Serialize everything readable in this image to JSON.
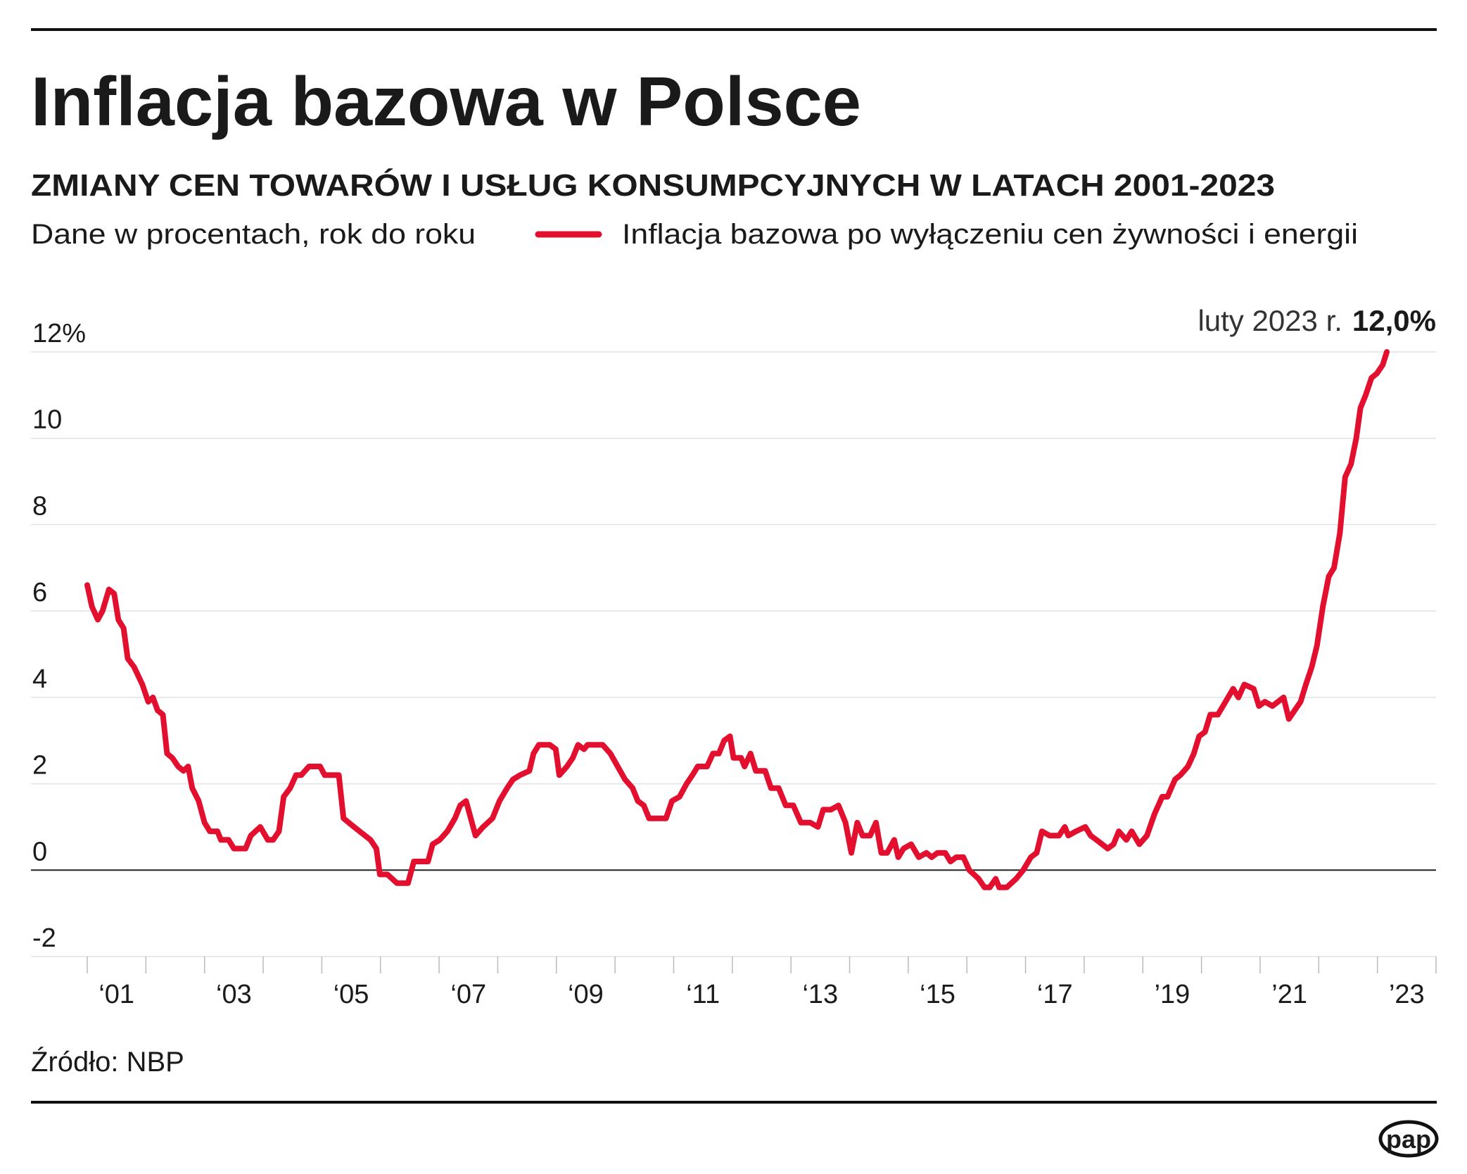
{
  "chart_data": {
    "type": "line",
    "title": "Inflacja bazowa w Polsce",
    "subtitle": "ZMIANY CEN TOWARÓW I USŁUG KONSUMPCYJNYCH W LATACH 2001-2023",
    "units_note": "Dane w procentach, rok do roku",
    "source": "Źródło: NBP",
    "logo": "pap",
    "end_label": {
      "text": "luty 2023 r.",
      "value": 12.0,
      "label": "12,0%"
    },
    "xlim": [
      2001,
      2024
    ],
    "xminorticks": [
      2001,
      2002,
      2003,
      2004,
      2005,
      2006,
      2007,
      2008,
      2009,
      2010,
      2011,
      2012,
      2013,
      2014,
      2015,
      2016,
      2017,
      2018,
      2019,
      2020,
      2021,
      2022,
      2023,
      2024
    ],
    "xticks": [
      {
        "value": 2001.5,
        "label": "‘01"
      },
      {
        "value": 2003.5,
        "label": "‘03"
      },
      {
        "value": 2005.5,
        "label": "‘05"
      },
      {
        "value": 2007.5,
        "label": "‘07"
      },
      {
        "value": 2009.5,
        "label": "‘09"
      },
      {
        "value": 2011.5,
        "label": "‘11"
      },
      {
        "value": 2013.5,
        "label": "‘13"
      },
      {
        "value": 2015.5,
        "label": "‘15"
      },
      {
        "value": 2017.5,
        "label": "‘17"
      },
      {
        "value": 2019.5,
        "label": "’19"
      },
      {
        "value": 2021.5,
        "label": "’21"
      },
      {
        "value": 2023.5,
        "label": "’23"
      }
    ],
    "ylim": [
      -2,
      12
    ],
    "yticks": [
      -2,
      0,
      2,
      4,
      6,
      8,
      10,
      {
        "value": 12,
        "label": "12%"
      }
    ],
    "grid": true,
    "x": [
      2001.0,
      2001.08,
      2001.18,
      2001.26,
      2001.37,
      2001.46,
      2001.53,
      2001.62,
      2001.69,
      2001.8,
      2001.94,
      2002.04,
      2002.12,
      2002.2,
      2002.29,
      2002.36,
      2002.45,
      2002.55,
      2002.64,
      2002.72,
      2002.79,
      2002.9,
      2003.0,
      2003.09,
      2003.22,
      2003.28,
      2003.41,
      2003.5,
      2003.7,
      2003.79,
      2003.95,
      2004.08,
      2004.17,
      2004.27,
      2004.35,
      2004.46,
      2004.56,
      2004.65,
      2004.78,
      2004.97,
      2005.05,
      2005.29,
      2005.37,
      2005.55,
      2005.83,
      2005.93,
      2005.99,
      2006.12,
      2006.28,
      2006.47,
      2006.57,
      2006.69,
      2006.81,
      2006.89,
      2007.01,
      2007.14,
      2007.27,
      2007.36,
      2007.46,
      2007.62,
      2007.75,
      2007.91,
      2008.03,
      2008.16,
      2008.26,
      2008.38,
      2008.54,
      2008.61,
      2008.7,
      2008.89,
      2008.99,
      2009.05,
      2009.18,
      2009.28,
      2009.37,
      2009.47,
      2009.53,
      2009.79,
      2009.92,
      2010.17,
      2010.3,
      2010.39,
      2010.49,
      2010.58,
      2010.87,
      2010.97,
      2011.1,
      2011.22,
      2011.32,
      2011.41,
      2011.57,
      2011.67,
      2011.77,
      2011.86,
      2011.96,
      2012.02,
      2012.15,
      2012.21,
      2012.31,
      2012.4,
      2012.56,
      2012.66,
      2012.79,
      2012.91,
      2013.04,
      2013.17,
      2013.33,
      2013.46,
      2013.55,
      2013.68,
      2013.81,
      2013.93,
      2014.03,
      2014.13,
      2014.22,
      2014.35,
      2014.45,
      2014.54,
      2014.64,
      2014.76,
      2014.83,
      2014.92,
      2015.05,
      2015.18,
      2015.31,
      2015.4,
      2015.5,
      2015.63,
      2015.72,
      2015.82,
      2015.94,
      2016.04,
      2016.2,
      2016.3,
      2016.39,
      2016.49,
      2016.55,
      2016.68,
      2016.84,
      2016.96,
      2017.09,
      2017.19,
      2017.28,
      2017.41,
      2017.57,
      2017.67,
      2017.73,
      2017.86,
      2018.02,
      2018.11,
      2018.21,
      2018.4,
      2018.5,
      2018.59,
      2018.72,
      2018.81,
      2018.94,
      2019.07,
      2019.2,
      2019.33,
      2019.42,
      2019.55,
      2019.64,
      2019.77,
      2019.87,
      2019.96,
      2020.06,
      2020.15,
      2020.28,
      2020.41,
      2020.54,
      2020.63,
      2020.73,
      2020.89,
      2020.98,
      2021.08,
      2021.21,
      2021.4,
      2021.49,
      2021.59,
      2021.69,
      2021.78,
      2021.88,
      2021.97,
      2022.07,
      2022.17,
      2022.26,
      2022.36,
      2022.45,
      2022.55,
      2022.64,
      2022.71,
      2022.8,
      2022.9,
      2022.99,
      2023.09,
      2023.16
    ],
    "series": [
      {
        "name": "Inflacja bazowa po wyłączeniu cen żywności i energii",
        "color": "#e2102e",
        "values": [
          6.6,
          6.1,
          5.8,
          6.0,
          6.5,
          6.4,
          5.8,
          5.6,
          4.9,
          4.7,
          4.3,
          3.9,
          4.0,
          3.7,
          3.6,
          2.7,
          2.6,
          2.4,
          2.3,
          2.4,
          1.9,
          1.6,
          1.1,
          0.9,
          0.9,
          0.7,
          0.7,
          0.5,
          0.5,
          0.8,
          1.0,
          0.7,
          0.7,
          0.9,
          1.7,
          1.9,
          2.2,
          2.2,
          2.4,
          2.4,
          2.2,
          2.2,
          1.2,
          1.0,
          0.7,
          0.5,
          -0.1,
          -0.1,
          -0.3,
          -0.3,
          0.2,
          0.2,
          0.2,
          0.6,
          0.7,
          0.9,
          1.2,
          1.5,
          1.6,
          0.8,
          1.0,
          1.2,
          1.6,
          1.9,
          2.1,
          2.2,
          2.3,
          2.7,
          2.9,
          2.9,
          2.8,
          2.2,
          2.4,
          2.6,
          2.9,
          2.8,
          2.9,
          2.9,
          2.7,
          2.1,
          1.9,
          1.6,
          1.5,
          1.2,
          1.2,
          1.6,
          1.7,
          2.0,
          2.2,
          2.4,
          2.4,
          2.7,
          2.7,
          3.0,
          3.1,
          2.6,
          2.6,
          2.4,
          2.7,
          2.3,
          2.3,
          1.9,
          1.9,
          1.5,
          1.5,
          1.1,
          1.1,
          1.0,
          1.4,
          1.4,
          1.5,
          1.1,
          0.4,
          1.1,
          0.8,
          0.8,
          1.1,
          0.4,
          0.4,
          0.7,
          0.3,
          0.5,
          0.6,
          0.3,
          0.4,
          0.3,
          0.4,
          0.4,
          0.2,
          0.3,
          0.3,
          0.0,
          -0.2,
          -0.4,
          -0.4,
          -0.2,
          -0.4,
          -0.4,
          -0.2,
          0.0,
          0.3,
          0.4,
          0.9,
          0.8,
          0.8,
          1.0,
          0.8,
          0.9,
          1.0,
          0.8,
          0.7,
          0.5,
          0.6,
          0.9,
          0.7,
          0.9,
          0.6,
          0.8,
          1.3,
          1.7,
          1.7,
          2.1,
          2.2,
          2.4,
          2.7,
          3.1,
          3.2,
          3.6,
          3.6,
          3.9,
          4.2,
          4.0,
          4.3,
          4.2,
          3.8,
          3.9,
          3.8,
          4.0,
          3.5,
          3.7,
          3.9,
          4.3,
          4.7,
          5.2,
          6.1,
          6.8,
          7.0,
          7.8,
          9.1,
          9.4,
          10.0,
          10.7,
          11.0,
          11.4,
          11.5,
          11.7,
          12.0
        ]
      }
    ]
  }
}
